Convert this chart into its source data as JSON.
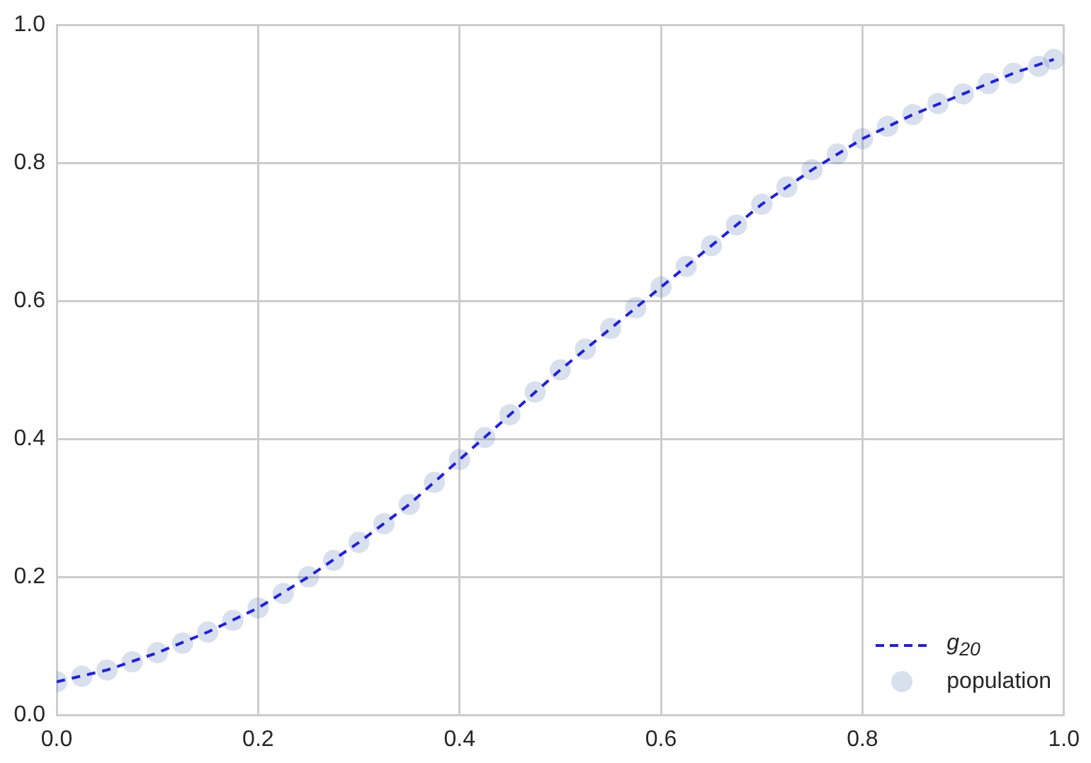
{
  "chart_data": {
    "type": "scatter",
    "xlim": [
      0,
      1
    ],
    "ylim": [
      0,
      1
    ],
    "xticks": [
      {
        "value": 0,
        "label": "0.0"
      },
      0.2,
      0.4,
      0.6,
      0.8,
      {
        "value": 1,
        "label": "1.0"
      }
    ],
    "yticks": [
      {
        "value": 0,
        "label": "0.0"
      },
      0.2,
      0.4,
      0.6,
      0.8,
      {
        "value": 1,
        "label": "1.0"
      }
    ],
    "grid": true,
    "legend": "bottom right",
    "series": [
      {
        "name": "g$_{20}$",
        "type": "line",
        "color": "#1f1fe6",
        "line_style": "dashed",
        "marker": "none",
        "x": [
          0,
          0.05,
          0.1,
          0.15,
          0.2,
          0.25,
          0.3,
          0.35,
          0.4,
          0.45,
          0.5,
          0.55,
          0.6,
          0.65,
          0.7,
          0.75,
          0.8,
          0.85,
          0.9,
          0.95,
          0.99
        ],
        "values": [
          0.048,
          0.065,
          0.09,
          0.12,
          0.155,
          0.2,
          0.25,
          0.305,
          0.37,
          0.435,
          0.5,
          0.56,
          0.62,
          0.68,
          0.74,
          0.79,
          0.835,
          0.87,
          0.9,
          0.93,
          0.95
        ]
      },
      {
        "name": "population",
        "color": "#4c72b0",
        "marker": "circle",
        "x": [
          0,
          0.025,
          0.05,
          0.075,
          0.1,
          0.125,
          0.15,
          0.175,
          0.2,
          0.225,
          0.25,
          0.275,
          0.3,
          0.325,
          0.35,
          0.375,
          0.4,
          0.425,
          0.45,
          0.475,
          0.5,
          0.525,
          0.55,
          0.575,
          0.6,
          0.625,
          0.65,
          0.675,
          0.7,
          0.725,
          0.75,
          0.775,
          0.8,
          0.825,
          0.85,
          0.875,
          0.9,
          0.925,
          0.95,
          0.975,
          0.99
        ],
        "values": [
          0.048,
          0.056,
          0.065,
          0.077,
          0.09,
          0.104,
          0.12,
          0.137,
          0.155,
          0.176,
          0.2,
          0.224,
          0.25,
          0.277,
          0.305,
          0.337,
          0.37,
          0.402,
          0.435,
          0.468,
          0.5,
          0.53,
          0.56,
          0.59,
          0.62,
          0.65,
          0.68,
          0.71,
          0.74,
          0.765,
          0.79,
          0.813,
          0.835,
          0.853,
          0.87,
          0.886,
          0.9,
          0.915,
          0.93,
          0.94,
          0.95
        ]
      }
    ]
  }
}
